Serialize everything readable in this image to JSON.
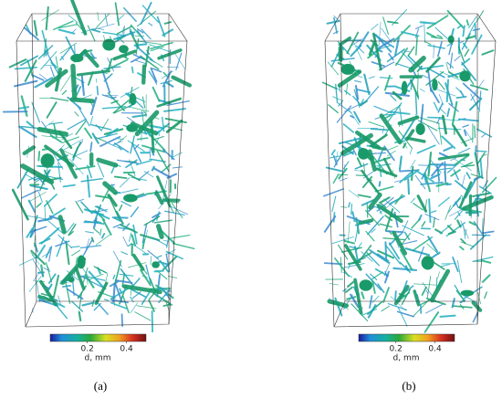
{
  "panels": [
    {
      "label": "(a)",
      "colorbar": {
        "label": "d, mm",
        "lim": [
          0.01,
          0.5
        ],
        "ticks": [
          0.2,
          0.4
        ]
      }
    },
    {
      "label": "(b)",
      "colorbar": {
        "label": "d, mm",
        "lim": [
          0.01,
          0.5
        ],
        "ticks": [
          0.2,
          0.4
        ]
      }
    }
  ]
}
